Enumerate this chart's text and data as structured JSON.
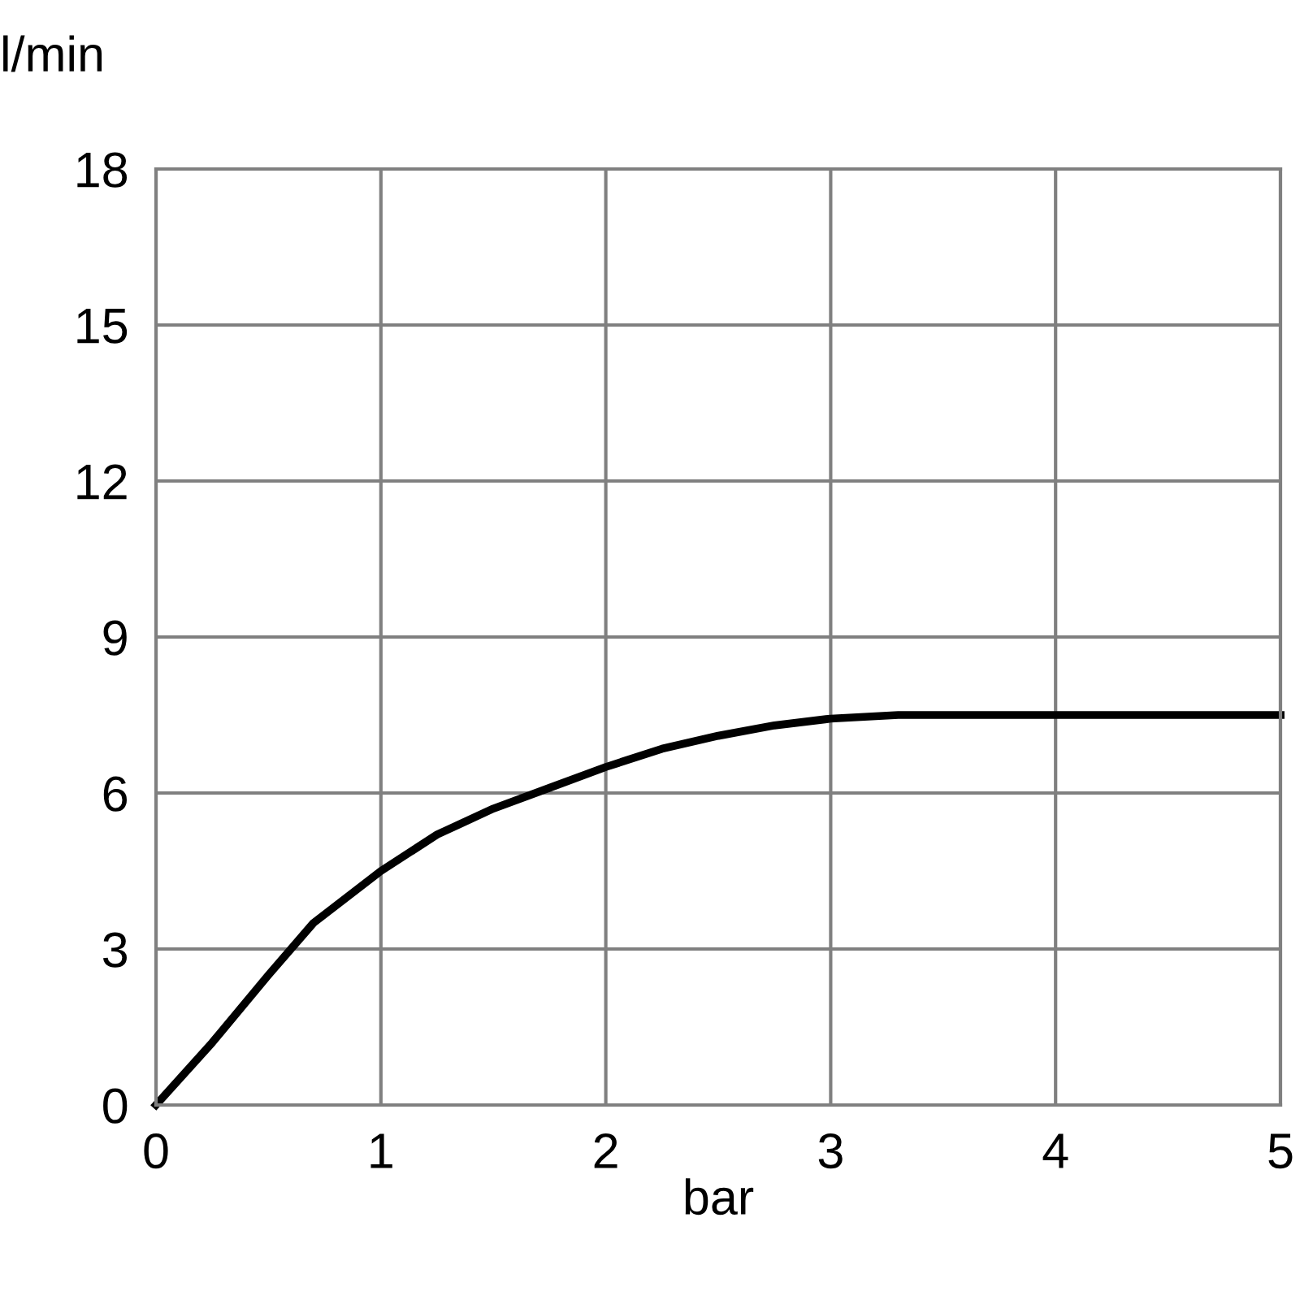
{
  "chart_data": {
    "type": "line",
    "xlabel": "bar",
    "ylabel": "l/min",
    "x": [
      0,
      0.25,
      0.5,
      0.7,
      1,
      1.25,
      1.5,
      1.75,
      2,
      2.25,
      2.5,
      2.75,
      3,
      3.3,
      4,
      5
    ],
    "series": [
      {
        "color": "#000000",
        "values": [
          0,
          1.2,
          2.5,
          3.5,
          4.5,
          5.2,
          5.7,
          6.1,
          6.5,
          6.85,
          7.1,
          7.3,
          7.43,
          7.5,
          7.5,
          7.5
        ]
      }
    ],
    "xlim": [
      0,
      5
    ],
    "ylim": [
      0,
      18
    ],
    "xticks": [
      0,
      1,
      2,
      3,
      4,
      5
    ],
    "yticks": [
      0,
      3,
      6,
      9,
      12,
      15,
      18
    ],
    "grid": true,
    "marker": "none",
    "line_style": "solid"
  }
}
